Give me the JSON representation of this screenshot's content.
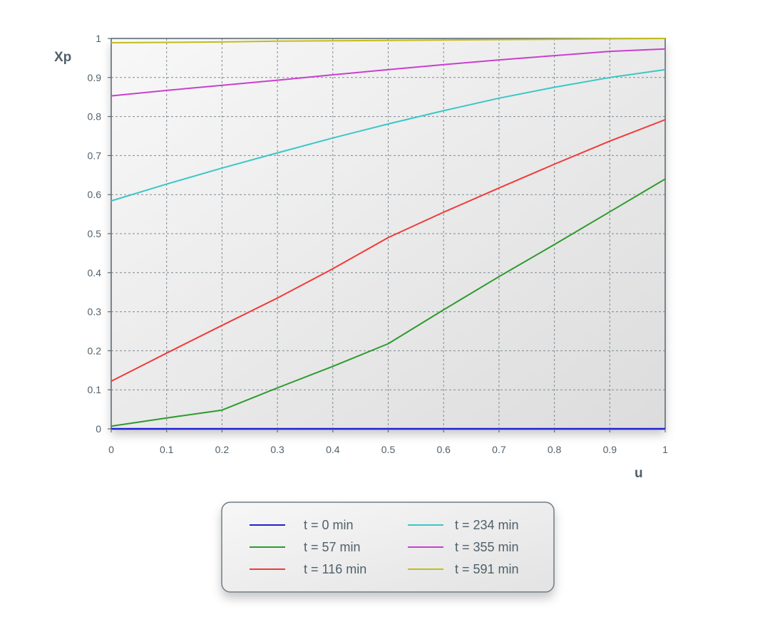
{
  "chart_data": {
    "type": "line",
    "xlabel": "u",
    "ylabel": "Xp",
    "xlim": [
      0,
      1
    ],
    "ylim": [
      0,
      1
    ],
    "x_ticks": [
      "0",
      "0.1",
      "0.2",
      "0.3",
      "0.4",
      "0.5",
      "0.6",
      "0.7",
      "0.8",
      "0.9",
      "1"
    ],
    "y_ticks": [
      "0",
      "0.1",
      "0.2",
      "0.3",
      "0.4",
      "0.5",
      "0.6",
      "0.7",
      "0.8",
      "0.9",
      "1"
    ],
    "grid": true,
    "legend_position": "bottom-center",
    "x": [
      0,
      0.1,
      0.2,
      0.3,
      0.4,
      0.5,
      0.6,
      0.7,
      0.8,
      0.9,
      1.0
    ],
    "series": [
      {
        "name": "t = 0 min",
        "color": "#1f1fd6",
        "values": [
          0.0,
          0.0,
          0.0,
          0.0,
          0.0,
          0.0,
          0.0,
          0.0,
          0.0,
          0.0,
          0.0
        ]
      },
      {
        "name": "t = 57 min",
        "color": "#2e9a2e",
        "values": [
          0.007,
          0.028,
          0.048,
          0.105,
          0.16,
          0.218,
          0.305,
          0.39,
          0.472,
          0.556,
          0.64
        ]
      },
      {
        "name": "t = 116 min",
        "color": "#f03a3a",
        "values": [
          0.122,
          0.194,
          0.265,
          0.335,
          0.41,
          0.49,
          0.555,
          0.617,
          0.678,
          0.737,
          0.792
        ]
      },
      {
        "name": "t = 234 min",
        "color": "#3cc6c6",
        "values": [
          0.584,
          0.627,
          0.668,
          0.707,
          0.745,
          0.781,
          0.815,
          0.847,
          0.875,
          0.9,
          0.92
        ]
      },
      {
        "name": "t = 355 min",
        "color": "#c93fcf",
        "values": [
          0.853,
          0.867,
          0.88,
          0.893,
          0.907,
          0.92,
          0.933,
          0.945,
          0.956,
          0.967,
          0.973
        ]
      },
      {
        "name": "t = 591 min",
        "color": "#c2bd1a",
        "values": [
          0.989,
          0.99,
          0.991,
          0.993,
          0.994,
          0.995,
          0.996,
          0.997,
          0.998,
          0.999,
          1.0
        ]
      }
    ]
  }
}
